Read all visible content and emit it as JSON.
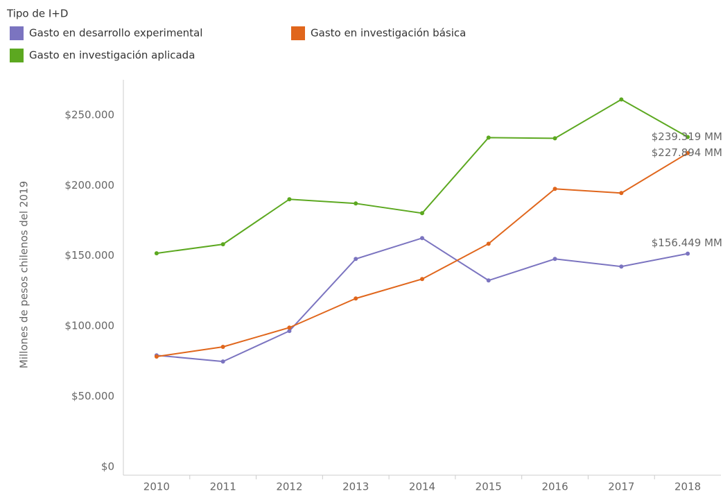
{
  "chart_data": {
    "type": "line",
    "legend_title": "Tipo de I+D",
    "y_label": "Millones de pesos chilenos del 2019",
    "categories": [
      "2010",
      "2011",
      "2012",
      "2013",
      "2014",
      "2015",
      "2016",
      "2017",
      "2018"
    ],
    "series": [
      {
        "name": "Gasto en desarrollo experimental",
        "color": "#7b74c0",
        "values": [
          84200,
          79800,
          101500,
          152700,
          167500,
          137400,
          152700,
          147300,
          156449
        ],
        "value_labels": [
          null,
          null,
          null,
          null,
          null,
          null,
          null,
          null,
          "$156.449 MM"
        ]
      },
      {
        "name": "Gasto en investigación básica",
        "color": "#e0661c",
        "values": [
          83300,
          90200,
          103900,
          124600,
          138400,
          163500,
          202500,
          199500,
          227894
        ],
        "value_labels": [
          null,
          null,
          null,
          null,
          null,
          null,
          null,
          null,
          "$227.894 MM"
        ]
      },
      {
        "name": "Gasto en investigación aplicada",
        "color": "#5ca820",
        "values": [
          156700,
          163100,
          195100,
          192100,
          185200,
          238900,
          238400,
          266000,
          239319
        ],
        "value_labels": [
          null,
          null,
          null,
          null,
          null,
          null,
          null,
          null,
          "$239.319 MM"
        ]
      }
    ],
    "ylim": [
      0,
      280000
    ],
    "yticks": [
      {
        "value": 0,
        "label": "$0"
      },
      {
        "value": 50000,
        "label": "$50.000"
      },
      {
        "value": 100000,
        "label": "$100.000"
      },
      {
        "value": 150000,
        "label": "$150.000"
      },
      {
        "value": 200000,
        "label": "$200.000"
      },
      {
        "value": 250000,
        "label": "$250.000"
      }
    ],
    "grid": false
  }
}
